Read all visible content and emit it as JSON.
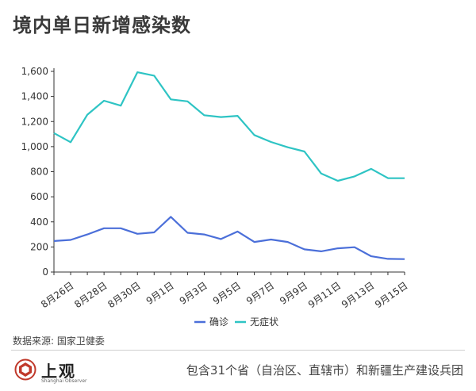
{
  "title": "境内单日新增感染数",
  "source": "数据来源: 国家卫健委",
  "footnote": "包含31个省（自治区、直辖市）和新疆生产建设兵团",
  "logo": {
    "name": "上观",
    "subtitle": "Shanghai Observer",
    "icon": "shanghai-observer-logo-icon",
    "color": "#c0392b"
  },
  "chart_data": {
    "type": "line",
    "x": [
      "8月25日",
      "8月26日",
      "8月27日",
      "8月28日",
      "8月29日",
      "8月30日",
      "8月31日",
      "9月1日",
      "9月2日",
      "9月3日",
      "9月4日",
      "9月5日",
      "9月6日",
      "9月7日",
      "9月8日",
      "9月9日",
      "9月10日",
      "9月11日",
      "9月12日",
      "9月13日",
      "9月14日",
      "9月15日"
    ],
    "x_tick_labels": [
      "8月26日",
      "8月28日",
      "8月30日",
      "9月1日",
      "9月3日",
      "9月5日",
      "9月7日",
      "9月9日",
      "9月11日",
      "9月13日",
      "9月15日"
    ],
    "ylim": [
      0,
      1600
    ],
    "y_ticks": [
      "0",
      "200",
      "400",
      "600",
      "800",
      "1,000",
      "1,200",
      "1,400",
      "1,600"
    ],
    "grid": false,
    "legend_placement": "bottom-center",
    "series": [
      {
        "name": "确诊",
        "color": "#4b6fd9",
        "values": [
          247,
          256,
          300,
          349,
          349,
          305,
          316,
          440,
          313,
          300,
          263,
          323,
          240,
          259,
          240,
          181,
          165,
          189,
          198,
          126,
          105,
          103
        ]
      },
      {
        "name": "无症状",
        "color": "#2ec4c4",
        "values": [
          1108,
          1035,
          1255,
          1366,
          1327,
          1593,
          1566,
          1377,
          1361,
          1250,
          1236,
          1245,
          1092,
          1037,
          995,
          961,
          786,
          727,
          763,
          823,
          749,
          748
        ]
      }
    ]
  }
}
